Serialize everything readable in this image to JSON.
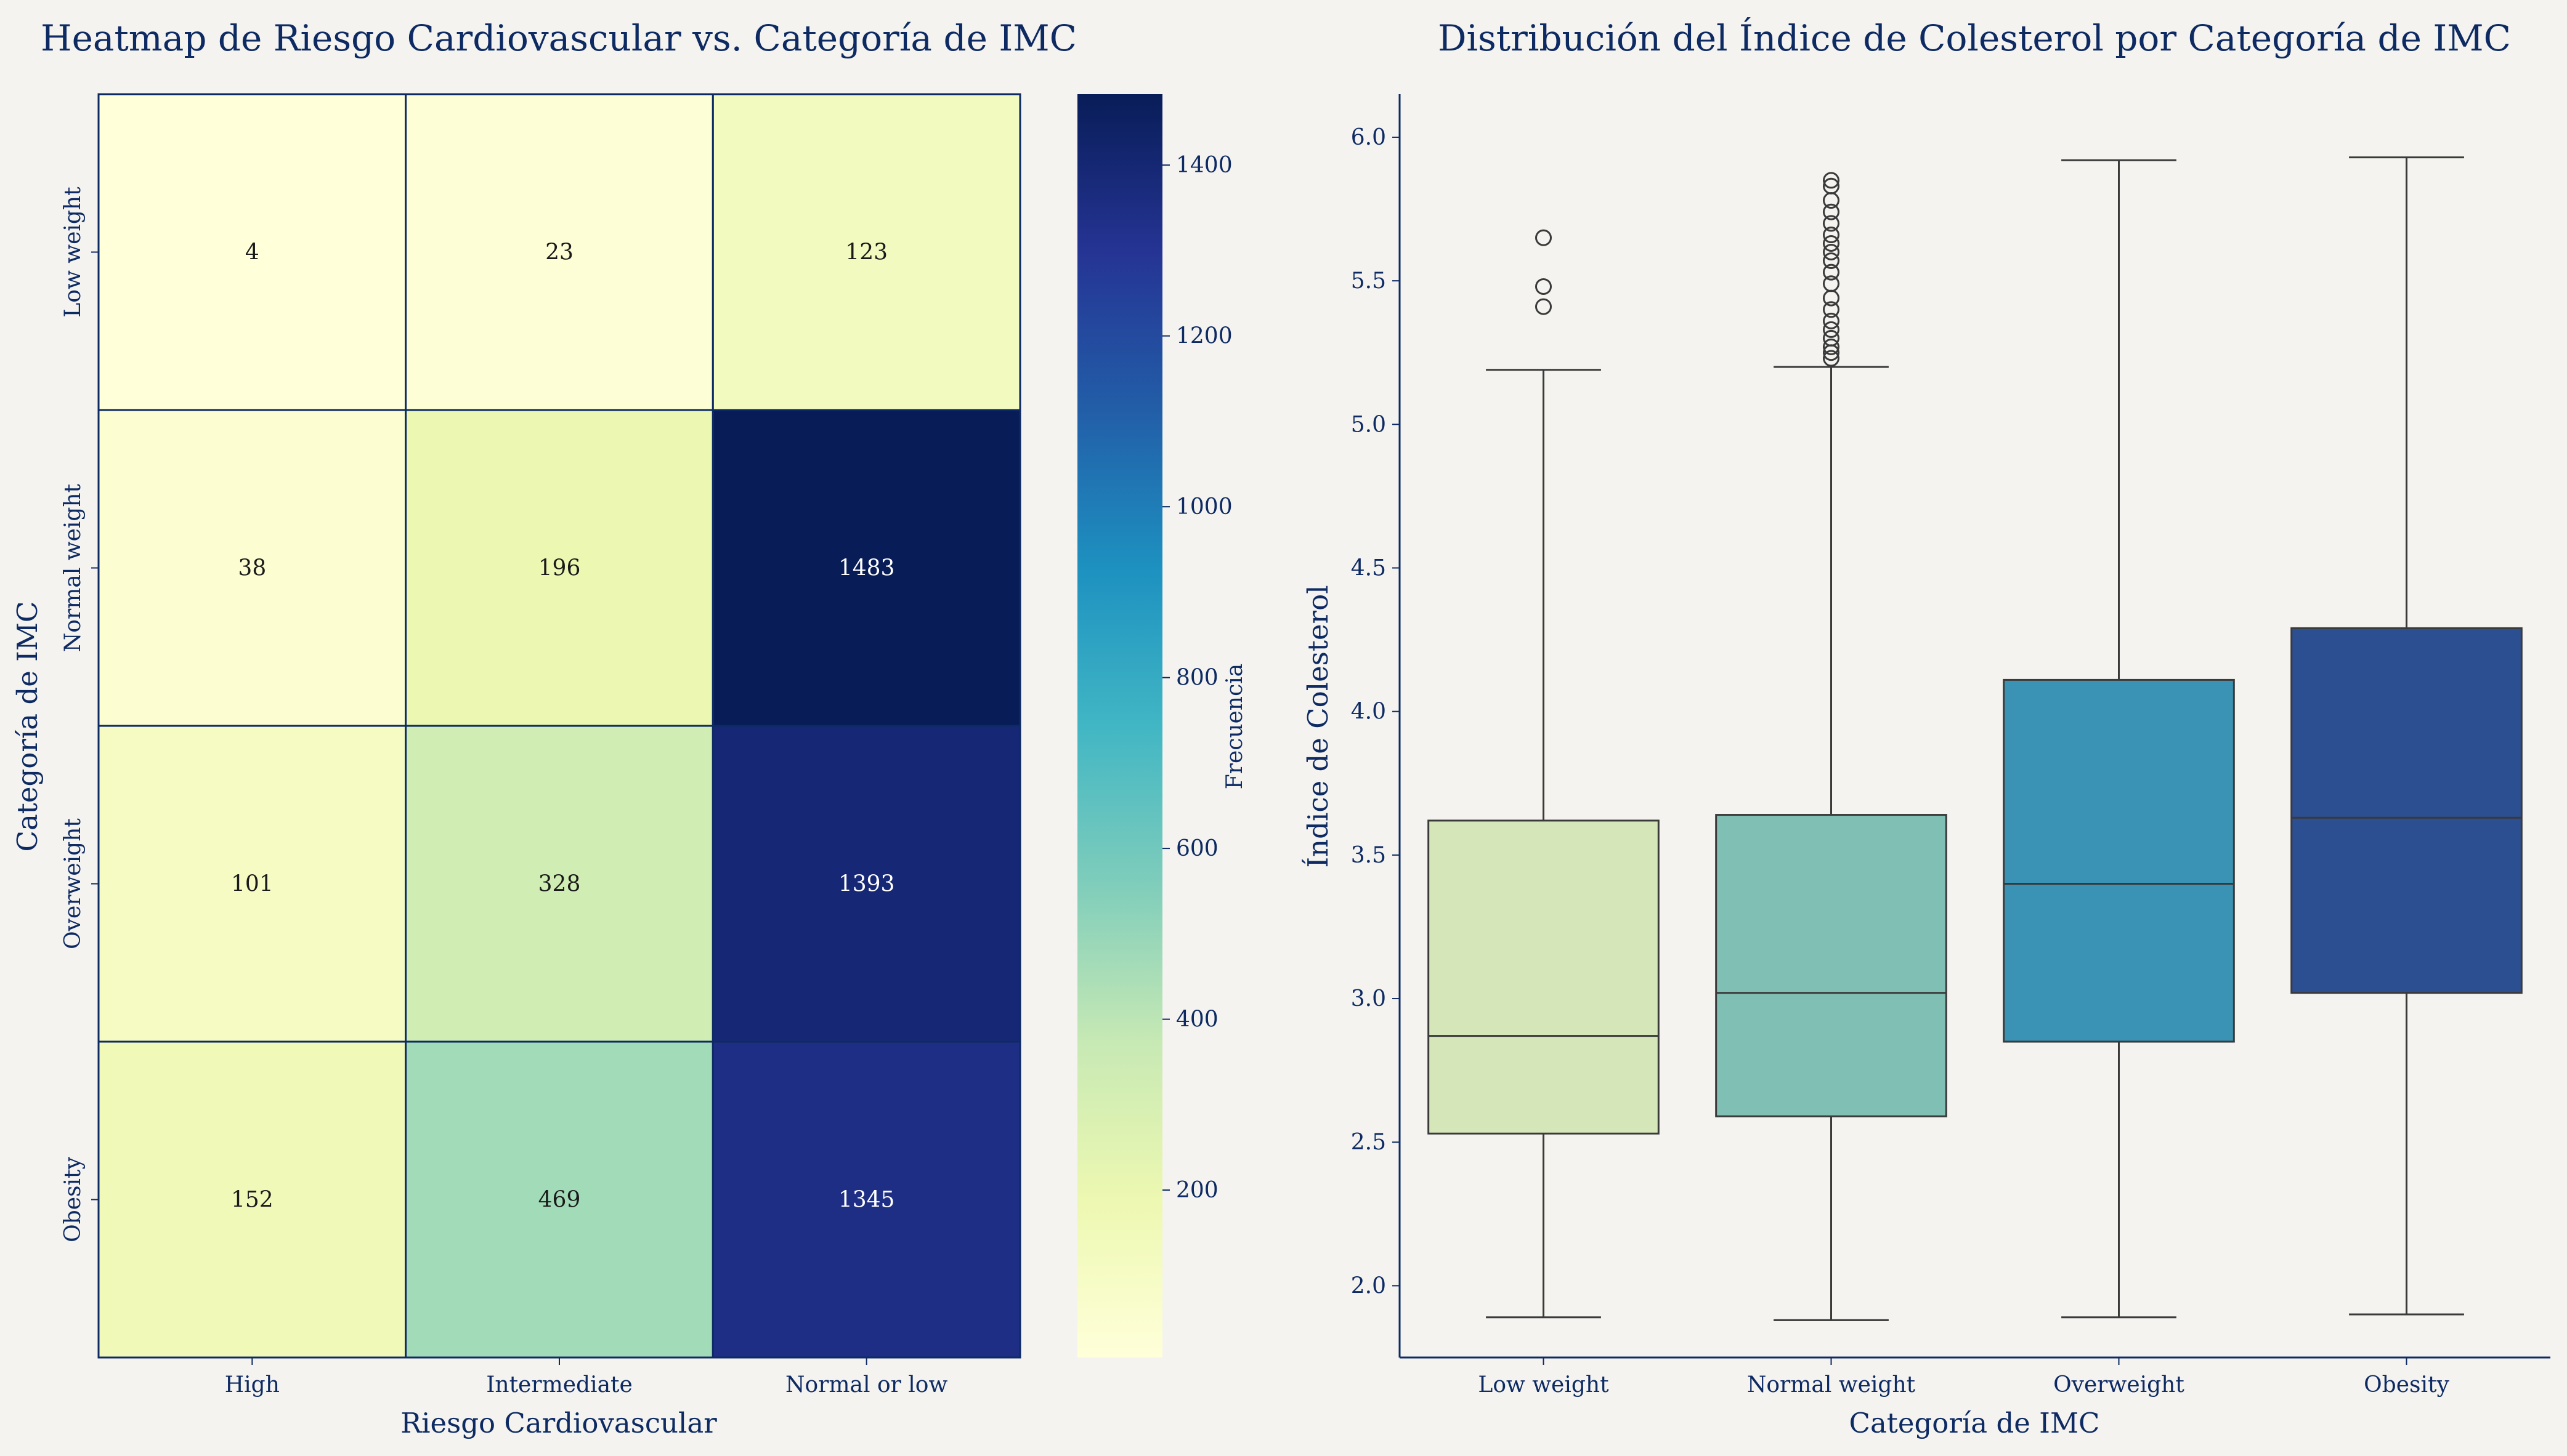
{
  "colors": {
    "background": "#f4f3ef",
    "text": "#0d2a63",
    "cell_border": "#0d2a63",
    "box_line": "#3a3a3a"
  },
  "chart_data": [
    {
      "type": "heatmap",
      "title": "Heatmap de Riesgo Cardiovascular vs. Categoría de IMC",
      "xlabel": "Riesgo Cardiovascular",
      "ylabel": "Categoría de IMC",
      "x_categories": [
        "High",
        "Intermediate",
        "Normal or low"
      ],
      "y_categories": [
        "Low weight",
        "Normal weight",
        "Overweight",
        "Obesity"
      ],
      "values": [
        [
          4,
          23,
          123
        ],
        [
          38,
          196,
          1483
        ],
        [
          101,
          328,
          1393
        ],
        [
          152,
          469,
          1345
        ]
      ],
      "colormap": "YlGnBu",
      "colorbar": {
        "label": "Frecuencia",
        "range": [
          4,
          1483
        ],
        "ticks": [
          200,
          400,
          600,
          800,
          1000,
          1200,
          1400
        ]
      }
    },
    {
      "type": "box",
      "title": "Distribución del Índice de Colesterol por Categoría de IMC",
      "xlabel": "Categoría de IMC",
      "ylabel": "Índice de Colesterol",
      "ylim": [
        1.75,
        6.15
      ],
      "yticks": [
        2.0,
        2.5,
        3.0,
        3.5,
        4.0,
        4.5,
        5.0,
        5.5,
        6.0
      ],
      "categories": [
        "Low weight",
        "Normal weight",
        "Overweight",
        "Obesity"
      ],
      "boxes": [
        {
          "min": 1.89,
          "q1": 2.53,
          "median": 2.87,
          "q3": 3.62,
          "max": 5.19,
          "color": "#d5e6b9",
          "outliers": [
            5.41,
            5.48,
            5.65
          ]
        },
        {
          "min": 1.88,
          "q1": 2.59,
          "median": 3.02,
          "q3": 3.64,
          "max": 5.2,
          "color": "#7fbfb4",
          "outliers": [
            5.23,
            5.25,
            5.27,
            5.3,
            5.33,
            5.36,
            5.4,
            5.44,
            5.49,
            5.53,
            5.57,
            5.6,
            5.63,
            5.66,
            5.7,
            5.74,
            5.78,
            5.83,
            5.85
          ]
        },
        {
          "min": 1.89,
          "q1": 2.85,
          "median": 3.4,
          "q3": 4.11,
          "max": 5.92,
          "color": "#3a93b4",
          "outliers": []
        },
        {
          "min": 1.9,
          "q1": 3.02,
          "median": 3.63,
          "q3": 4.29,
          "max": 5.93,
          "color": "#2c4f92",
          "outliers": []
        }
      ]
    }
  ]
}
